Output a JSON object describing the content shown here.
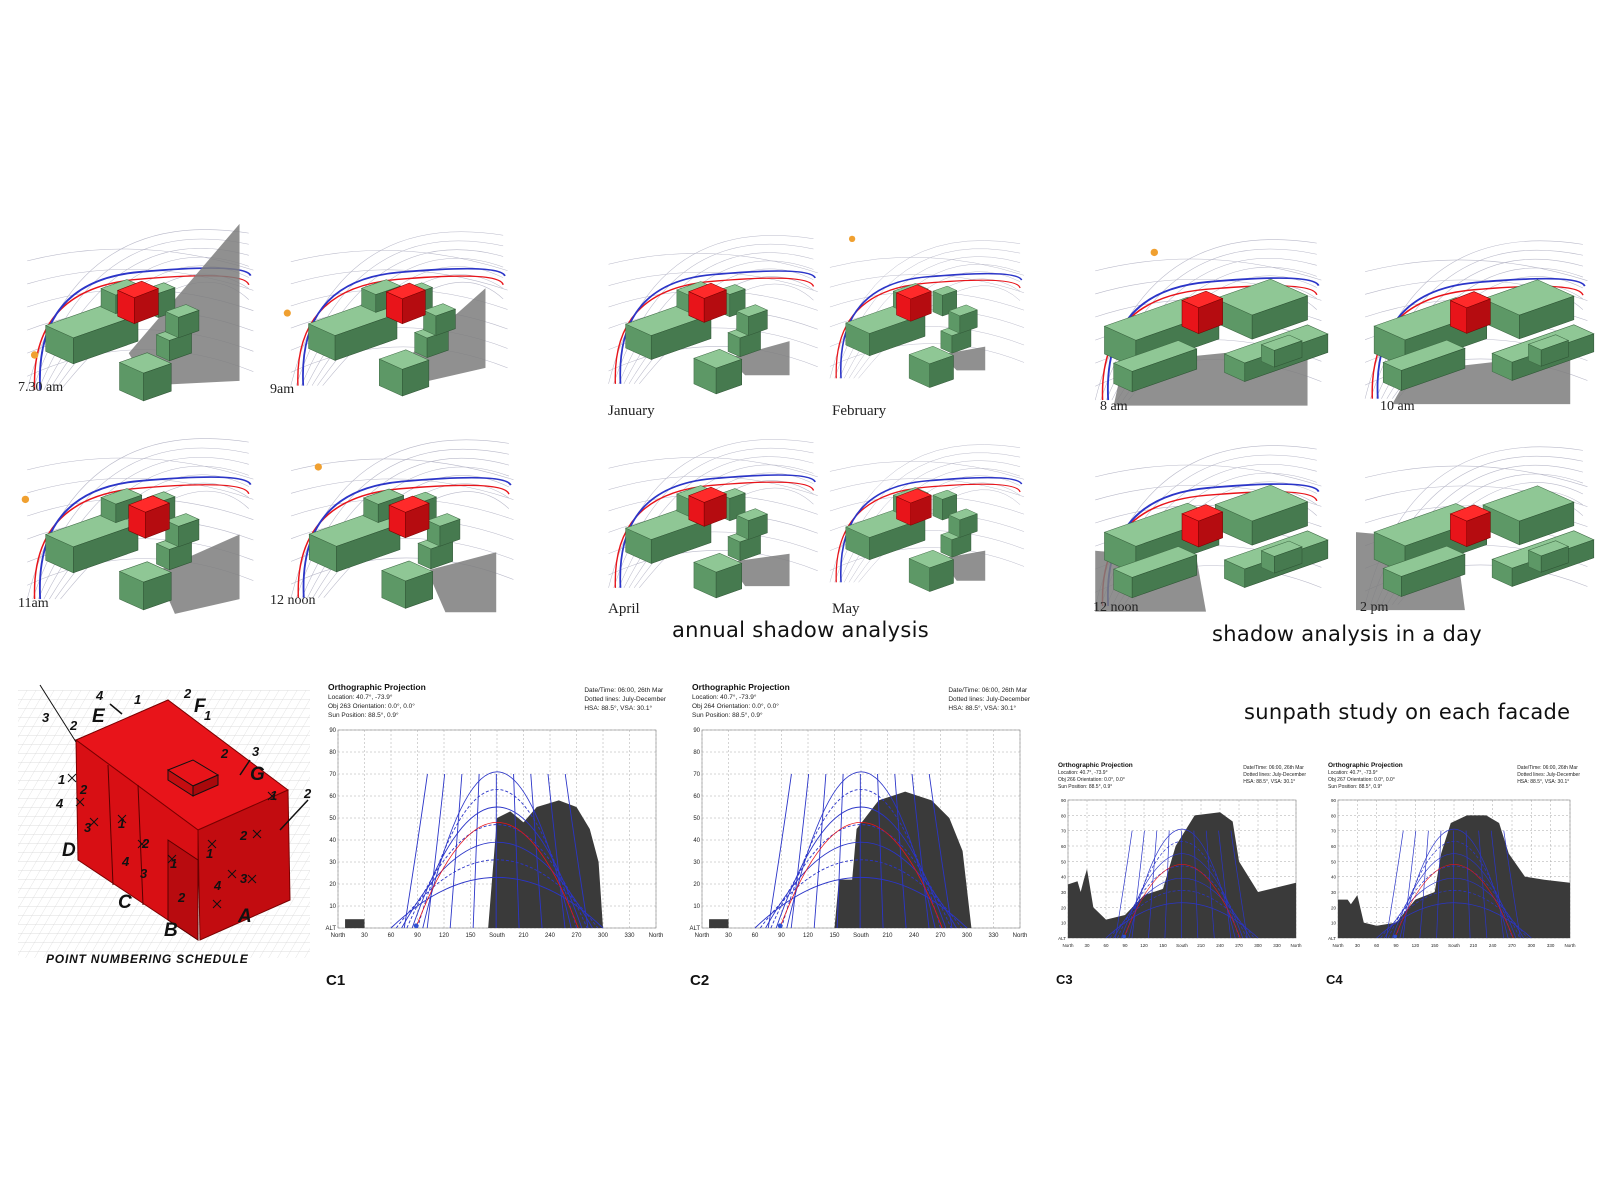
{
  "daily_set_1": {
    "captions": [
      "7.30 am",
      "9am",
      "11am",
      "12 noon"
    ]
  },
  "annual_set": {
    "captions": [
      "January",
      "February",
      "April",
      "May"
    ],
    "heading": "annual shadow analysis"
  },
  "daily_set_2": {
    "captions": [
      "8 am",
      "10 am",
      "12 noon",
      "2 pm"
    ],
    "heading": "shadow analysis in a day"
  },
  "schedule": {
    "caption": "POINT NUMBERING SCHEDULE",
    "letters": [
      "A",
      "B",
      "C",
      "D",
      "E",
      "F",
      "G"
    ]
  },
  "sunpath": {
    "heading": "sunpath study on each facade",
    "charts": [
      {
        "label": "C1",
        "title": "Orthographic Projection",
        "meta_left": "Location: 40.7°, -73.9°\nObj 263 Orientation: 0.0°, 0.0°\nSun Position: 88.5°, 0.9°",
        "meta_right": "Date/Time: 06:00, 26th Mar\nDotted lines: July-December\nHSA: 88.5°, VSA: 30.1°"
      },
      {
        "label": "C2",
        "title": "Orthographic Projection",
        "meta_left": "Location: 40.7°, -73.9°\nObj 264 Orientation: 0.0°, 0.0°\nSun Position: 88.5°, 0.9°",
        "meta_right": "Date/Time: 06:00, 26th Mar\nDotted lines: July-December\nHSA: 88.5°, VSA: 30.1°"
      },
      {
        "label": "C3",
        "title": "Orthographic Projection",
        "meta_left": "Location: 40.7°, -73.9°\nObj 266 Orientation: 0.0°, 0.0°\nSun Position: 88.5°, 0.9°",
        "meta_right": "Date/Time: 06:00, 26th Mar\nDotted lines: July-December\nHSA: 88.5°, VSA: 30.1°"
      },
      {
        "label": "C4",
        "title": "Orthographic Projection",
        "meta_left": "Location: 40.7°, -73.9°\nObj 267 Orientation: 0.0°, 0.0°\nSun Position: 88.5°, 0.9°",
        "meta_right": "Date/Time: 06:00, 26th Mar\nDotted lines: July-December\nHSA: 88.5°, VSA: 30.1°"
      }
    ],
    "x_ticks": [
      "North",
      "30",
      "60",
      "90",
      "120",
      "150",
      "South",
      "210",
      "240",
      "270",
      "300",
      "330",
      "North"
    ],
    "y_ticks": [
      "ALT",
      "10",
      "20",
      "30",
      "40",
      "50",
      "60",
      "70",
      "80",
      "90"
    ]
  },
  "colors": {
    "target_building": "#e8141a",
    "context_buildings": "#8fc795",
    "shadow": "#7d7d7d",
    "sunpath": "#2b35c8",
    "obstruction": "#3a3a3a"
  }
}
